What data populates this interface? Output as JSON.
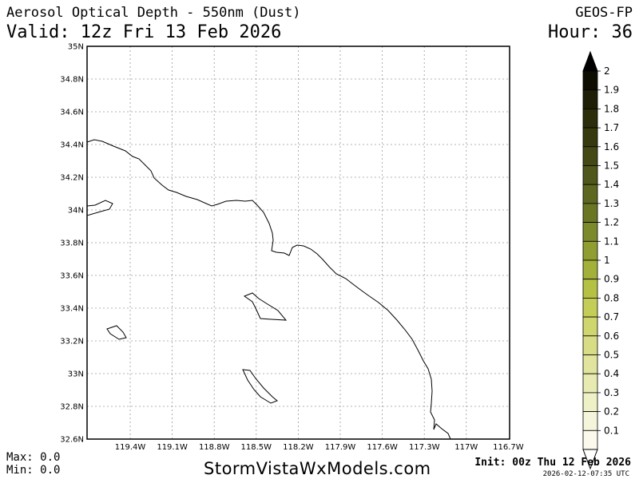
{
  "header": {
    "title": "Aerosol Optical Depth - 550nm (Dust)",
    "valid": "Valid: 12z Fri 13 Feb 2026",
    "model": "GEOS-FP",
    "hour": "Hour: 36"
  },
  "stats": {
    "max": "Max: 0.0",
    "min": "Min: 0.0"
  },
  "footer": {
    "site": "StormVistaWxModels.com",
    "init": "Init: 00z Thu 12 Feb 2026",
    "stamp": "2026-02-12-07:35 UTC"
  },
  "map": {
    "lat_labels": [
      "35N",
      "34.8N",
      "34.6N",
      "34.4N",
      "34.2N",
      "34N",
      "33.8N",
      "33.6N",
      "33.4N",
      "33.2N",
      "33N",
      "32.8N",
      "32.6N"
    ],
    "lon_labels": [
      "119.4W",
      "119.1W",
      "118.8W",
      "118.5W",
      "118.2W",
      "117.9W",
      "117.6W",
      "117.3W",
      "117W",
      "116.7W"
    ],
    "grid": true
  },
  "colorbar": {
    "labels": [
      "2",
      "1.9",
      "1.8",
      "1.7",
      "1.6",
      "1.5",
      "1.4",
      "1.3",
      "1.2",
      "1.1",
      "1",
      "0.9",
      "0.8",
      "0.7",
      "0.6",
      "0.5",
      "0.4",
      "0.3",
      "0.2",
      "0.1"
    ],
    "colors": [
      "#0d0d00",
      "#1f1f08",
      "#2b2d0b",
      "#373a0f",
      "#444815",
      "#50571a",
      "#5e671f",
      "#6b7625",
      "#7c8a2b",
      "#8f9d31",
      "#a3b03a",
      "#b5c144",
      "#c4cd58",
      "#cfd66e",
      "#d8dd85",
      "#e0e49c",
      "#e7eab1",
      "#eef0c6",
      "#f4f5da",
      "#faf9ec"
    ]
  }
}
